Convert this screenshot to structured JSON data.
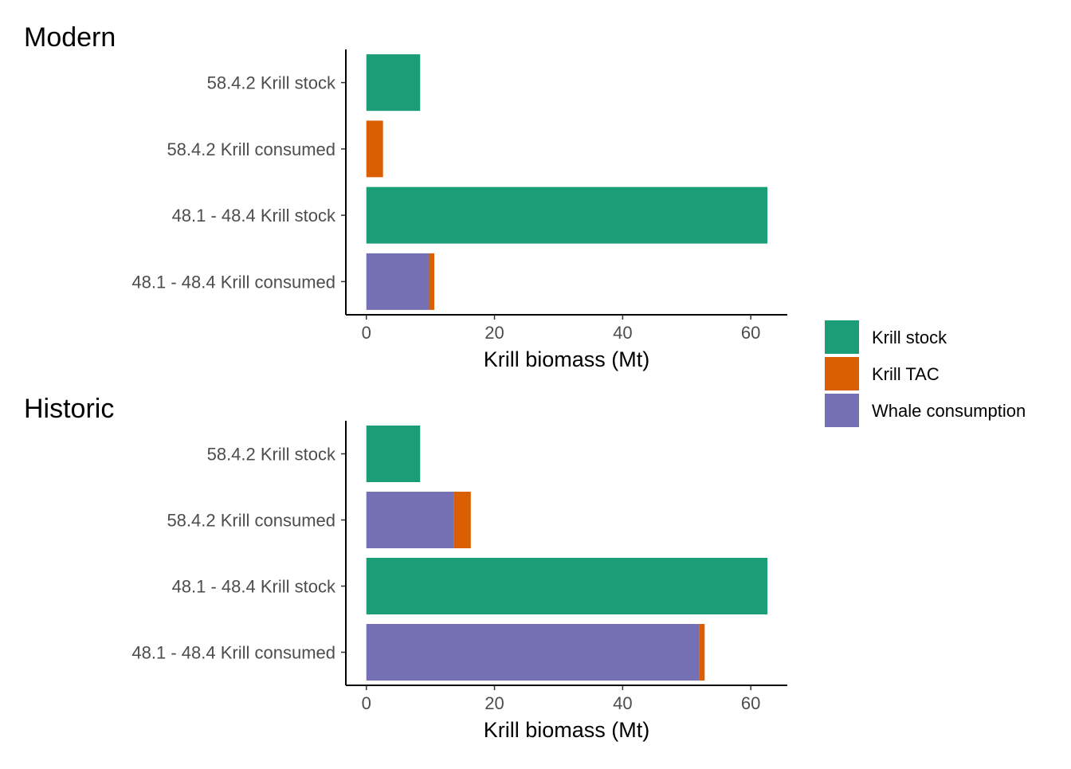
{
  "colors": {
    "Krill stock": "#1b9e77",
    "Krill TAC": "#d95f02",
    "Whale consumption": "#7570b3"
  },
  "legend": {
    "items": [
      "Krill stock",
      "Krill TAC",
      "Whale consumption"
    ]
  },
  "chart_data": [
    {
      "type": "bar",
      "orientation": "horizontal",
      "stacked": true,
      "title": "Modern",
      "xlabel": "Krill biomass (Mt)",
      "xlim": [
        -3.2,
        65.7
      ],
      "xticks": [
        0,
        20,
        40,
        60
      ],
      "categories": [
        "58.4.2 Krill stock",
        "58.4.2 Krill consumed",
        "48.1 - 48.4 Krill stock",
        "48.1 - 48.4 Krill consumed"
      ],
      "series": [
        {
          "name": "Whale consumption",
          "values": [
            0,
            0,
            0,
            9.8
          ]
        },
        {
          "name": "Krill TAC",
          "values": [
            0,
            2.6,
            0,
            0.8
          ]
        },
        {
          "name": "Krill stock",
          "values": [
            8.4,
            0,
            62.6,
            0
          ]
        }
      ]
    },
    {
      "type": "bar",
      "orientation": "horizontal",
      "stacked": true,
      "title": "Historic",
      "xlabel": "Krill biomass (Mt)",
      "xlim": [
        -3.2,
        65.7
      ],
      "xticks": [
        0,
        20,
        40,
        60
      ],
      "categories": [
        "58.4.2 Krill stock",
        "58.4.2 Krill consumed",
        "48.1 - 48.4 Krill stock",
        "48.1 - 48.4 Krill consumed"
      ],
      "series": [
        {
          "name": "Whale consumption",
          "values": [
            0,
            13.7,
            0,
            52.0
          ]
        },
        {
          "name": "Krill TAC",
          "values": [
            0,
            2.6,
            0,
            0.8
          ]
        },
        {
          "name": "Krill stock",
          "values": [
            8.4,
            0,
            62.6,
            0
          ]
        }
      ]
    }
  ]
}
